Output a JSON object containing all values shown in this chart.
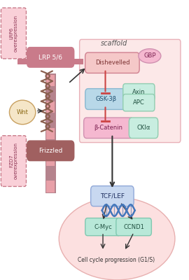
{
  "bg_color": "#ffffff",
  "fig_width": 2.7,
  "fig_height": 4.0,
  "dpi": 100,
  "membrane_color": "#b5838d",
  "membrane_stripe_color": "#e8a0a8",
  "lrp56_label": "LRP 5/6",
  "lrp56_color": "#c97b8a",
  "lrp56_text_color": "#ffffff",
  "frizzled_label": "Frizzled",
  "frizzled_color": "#a06060",
  "frizzled_text_color": "#ffffff",
  "wnt_label": "Wnt",
  "wnt_color": "#f5e6c8",
  "wnt_text_color": "#8b6914",
  "lrp6_box_color": "#f9d0d8",
  "lrp6_box_border": "#c97b8a",
  "fzd7_box_color": "#f9d0d8",
  "fzd7_box_border": "#c97b8a",
  "scaffold_label": "scaffold",
  "scaffold_box_color": "#fce8e8",
  "scaffold_box_border": "#e8b0b8",
  "dishevelled_label": "Dishevelled",
  "dishevelled_color": "#f5c8c8",
  "dishevelled_text_color": "#7a3030",
  "gbp_label": "GBP",
  "gbp_color": "#f5b8d0",
  "gbp_text_color": "#7a2050",
  "gsk3b_label": "GSK-3β",
  "gsk3b_color": "#b8d8e8",
  "gsk3b_text_color": "#205070",
  "axin_label": "Axin",
  "axin_color": "#c8ede0",
  "axin_text_color": "#205040",
  "apc_label": "APC",
  "apc_color": "#c8ede0",
  "apc_text_color": "#205040",
  "bcatenin_label": "β-Catenin",
  "bcatenin_color": "#f5b8d0",
  "bcatenin_text_color": "#7a2050",
  "ckia_label": "CKIα",
  "ckia_color": "#c8ede0",
  "ckia_text_color": "#205040",
  "tcflef_label": "TCF/LEF",
  "tcflef_color": "#c8d8f0",
  "tcflef_text_color": "#203060",
  "cmyc_label": "C-Myc",
  "cmyc_color": "#b8e8d8",
  "cmyc_text_color": "#205040",
  "ccnd1_label": "CCND1",
  "ccnd1_color": "#b8e8d8",
  "ccnd1_text_color": "#205040",
  "cell_cycle_label": "Cell cycle progression (G1/S)",
  "cell_bg_color": "#fce0e0",
  "cell_border_color": "#e8b0b0",
  "dna_color": "#4477bb",
  "arrow_color": "#333333",
  "inhibit_color": "#cc4444",
  "text_overexpr_color": "#8b3050",
  "scaffold_text_color": "#555555",
  "membrane_helix_color": "#8B6050",
  "wnt_border_color": "#c8a060"
}
